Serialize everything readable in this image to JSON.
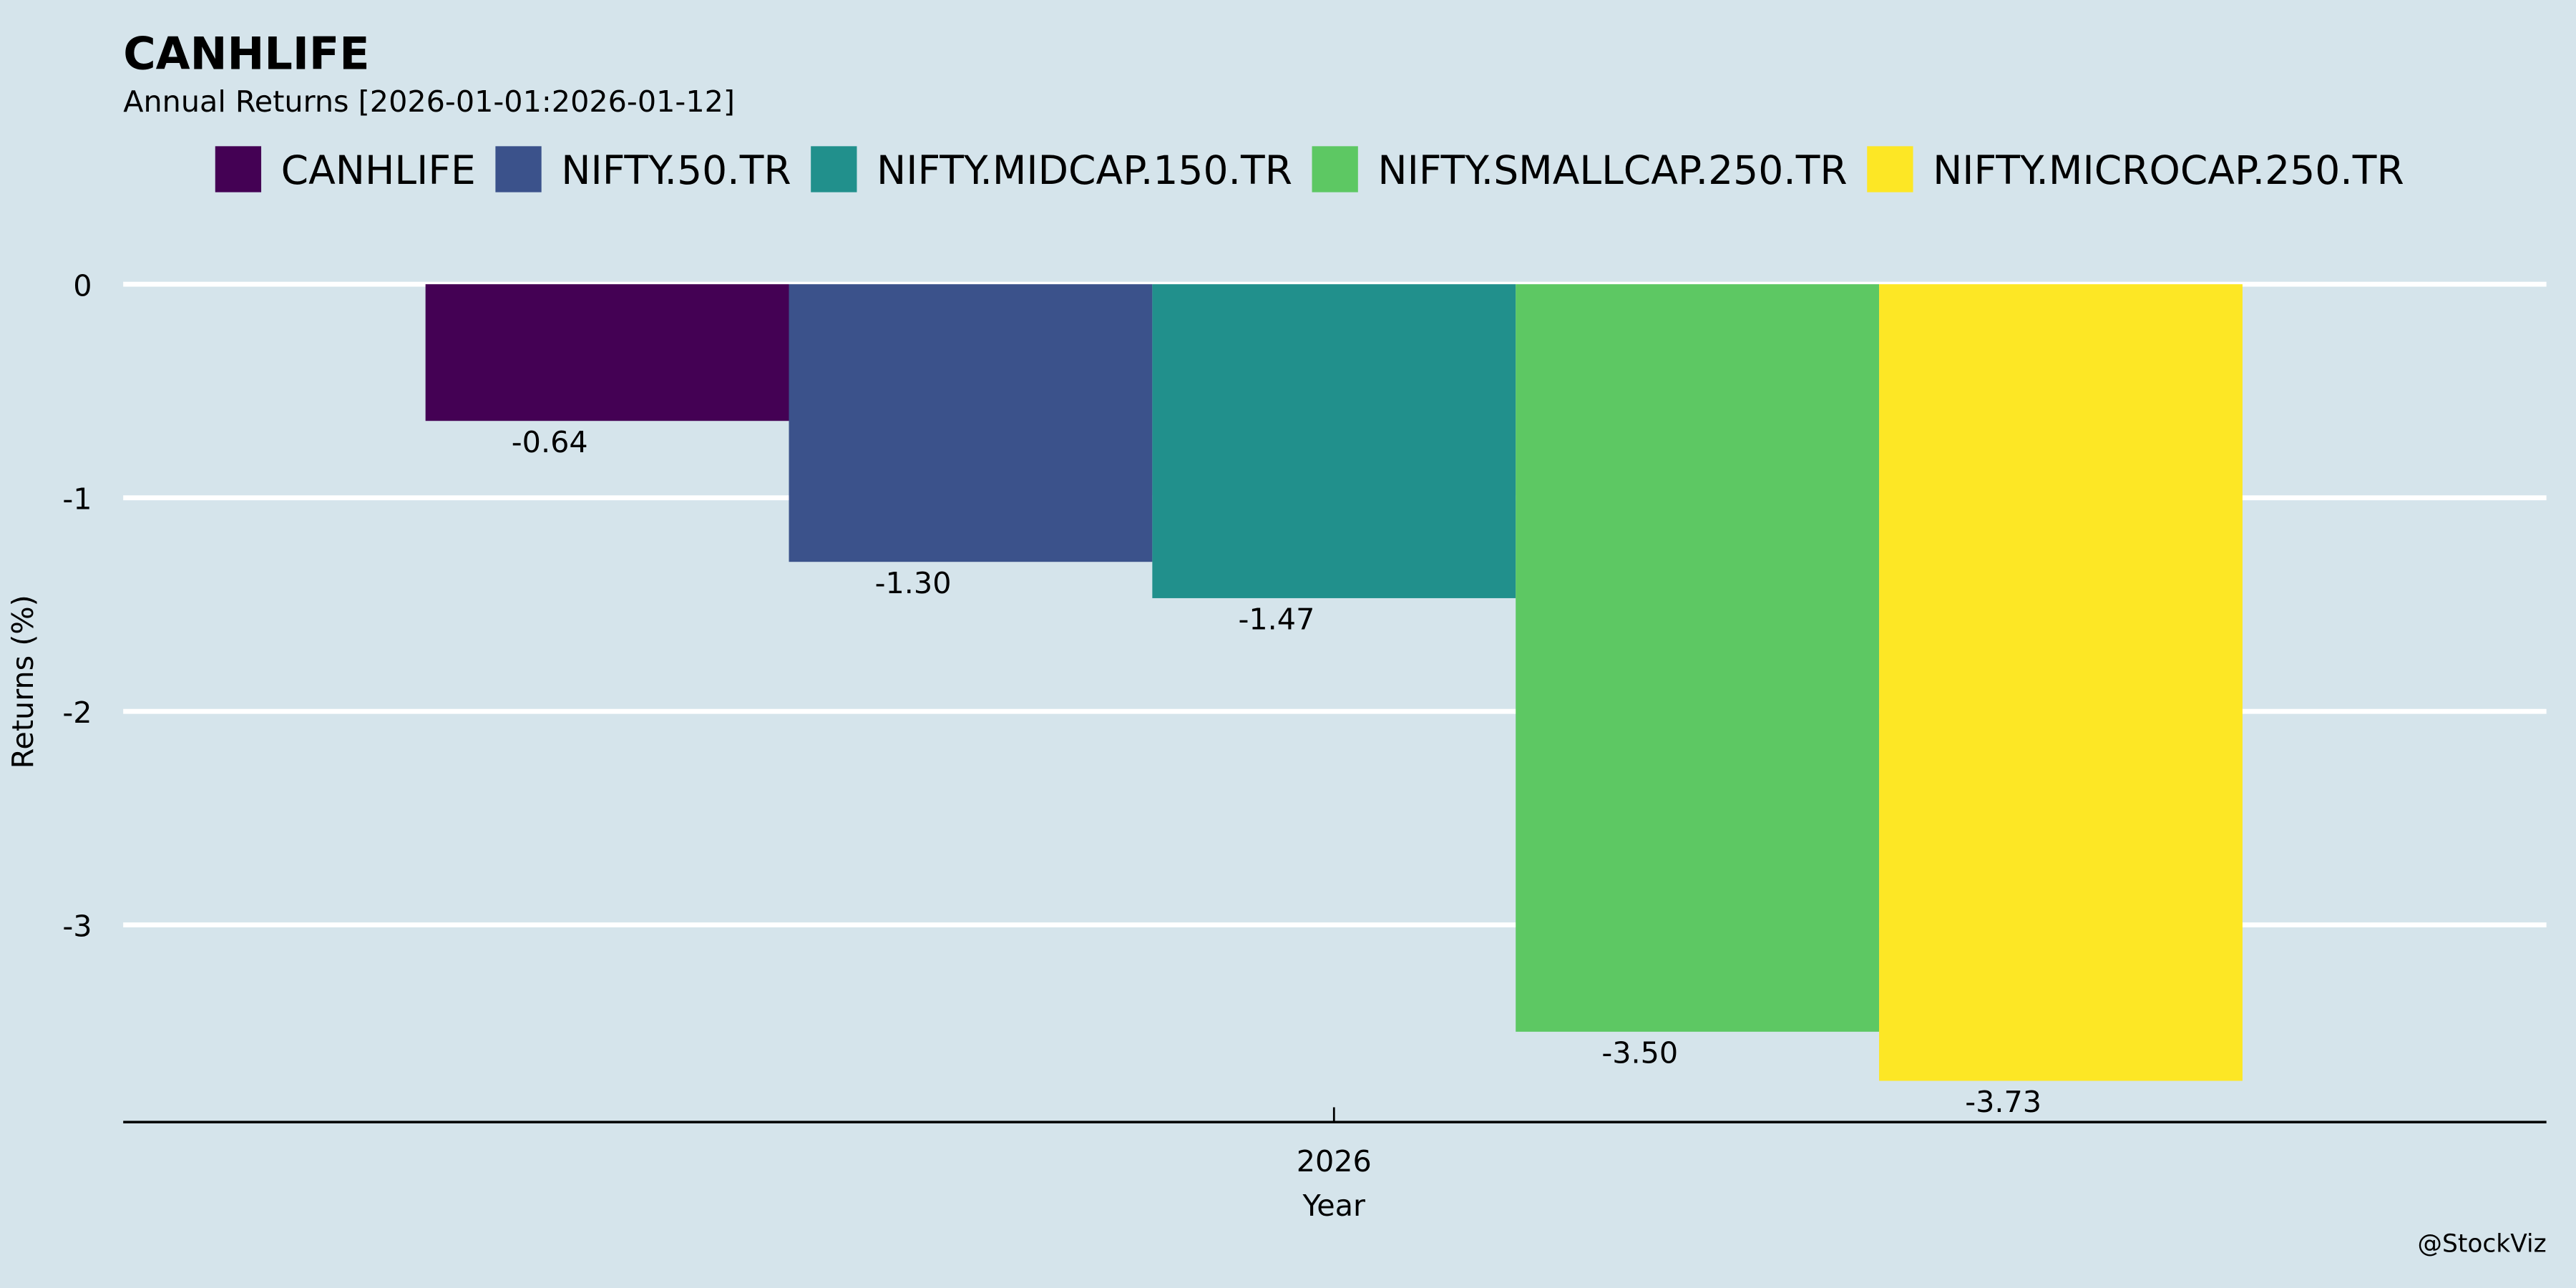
{
  "chart_data": {
    "type": "bar",
    "title": "CANHLIFE",
    "subtitle": "Annual Returns [2026-01-01:2026-01-12]",
    "xlabel": "Year",
    "ylabel": "Returns (%)",
    "categories": [
      "2026"
    ],
    "series": [
      {
        "name": "CANHLIFE",
        "values": [
          -0.64
        ],
        "label": "-0.64",
        "color": "#440154"
      },
      {
        "name": "NIFTY.50.TR",
        "values": [
          -1.3
        ],
        "label": "-1.30",
        "color": "#3b528b"
      },
      {
        "name": "NIFTY.MIDCAP.150.TR",
        "values": [
          -1.47
        ],
        "label": "-1.47",
        "color": "#21908c"
      },
      {
        "name": "NIFTY.SMALLCAP.250.TR",
        "values": [
          -3.5
        ],
        "label": "-3.50",
        "color": "#5dc863"
      },
      {
        "name": "NIFTY.MICROCAP.250.TR",
        "values": [
          -3.73
        ],
        "label": "-3.73",
        "color": "#fde725"
      }
    ],
    "yticks": [
      "0",
      "-1",
      "-2",
      "-3"
    ],
    "ytick_values": [
      0,
      -1,
      -2,
      -3
    ],
    "ylim": [
      -3.92,
      0.1
    ],
    "grid": true,
    "legend_placement": "top",
    "background_color": "#d5e4eb",
    "caption": "@StockViz"
  }
}
